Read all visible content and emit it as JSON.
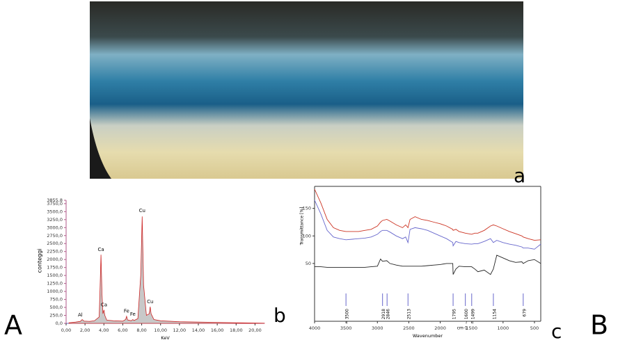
{
  "panel_labels": {
    "photo": "a",
    "spectrum": "b",
    "ftir": "c",
    "left": "A",
    "right": "B"
  },
  "chart_data": [
    {
      "type": "area",
      "x_label": "KeV",
      "y_label": "conteggi",
      "color": "#cc2222",
      "fill": "#c8c8c8",
      "x": [
        0.3,
        1.0,
        1.5,
        1.7,
        1.9,
        2.5,
        3.0,
        3.5,
        3.6,
        3.69,
        3.8,
        3.9,
        4.01,
        4.1,
        4.3,
        5.0,
        6.0,
        6.3,
        6.4,
        6.5,
        6.9,
        7.06,
        7.2,
        7.6,
        7.9,
        8.05,
        8.2,
        8.5,
        8.8,
        8.9,
        9.0,
        9.3,
        10,
        12,
        14,
        16,
        18,
        20,
        21
      ],
      "values": [
        20,
        40,
        60,
        120,
        70,
        60,
        80,
        200,
        1200,
        2150,
        900,
        300,
        420,
        250,
        100,
        80,
        70,
        120,
        220,
        110,
        80,
        120,
        90,
        150,
        1500,
        3350,
        1200,
        250,
        300,
        520,
        300,
        120,
        80,
        50,
        40,
        30,
        20,
        10,
        5
      ],
      "xlim": [
        0,
        21
      ],
      "ylim": [
        0,
        3855.8
      ],
      "xticks": [
        {
          "value": 0,
          "label": "0,00"
        },
        {
          "value": 2,
          "label": "2,00"
        },
        {
          "value": 4,
          "label": "4,00"
        },
        {
          "value": 6,
          "label": "6,00"
        },
        {
          "value": 8,
          "label": "8,00"
        },
        {
          "value": 10,
          "label": "10,00"
        },
        {
          "value": 12,
          "label": "12,00"
        },
        {
          "value": 14,
          "label": "14,00"
        },
        {
          "value": 16,
          "label": "16,00"
        },
        {
          "value": 18,
          "label": "18,00"
        },
        {
          "value": 20,
          "label": "20,00"
        }
      ],
      "yticks": [
        {
          "value": 0,
          "label": "0,0"
        },
        {
          "value": 250,
          "label": "250,0"
        },
        {
          "value": 500,
          "label": "500,0"
        },
        {
          "value": 750,
          "label": "750,0"
        },
        {
          "value": 1000,
          "label": "1000,0"
        },
        {
          "value": 1250,
          "label": "1250,0"
        },
        {
          "value": 1500,
          "label": "1500,0"
        },
        {
          "value": 1750,
          "label": "1750,0"
        },
        {
          "value": 2000,
          "label": "2000,0"
        },
        {
          "value": 2250,
          "label": "2250,0"
        },
        {
          "value": 2500,
          "label": "2500,0"
        },
        {
          "value": 2750,
          "label": "2750,0"
        },
        {
          "value": 3000,
          "label": "3000,0"
        },
        {
          "value": 3250,
          "label": "3250,0"
        },
        {
          "value": 3500,
          "label": "3500,0"
        },
        {
          "value": 3750,
          "label": "3750,0"
        },
        {
          "value": 3855.8,
          "label": "3855,8"
        }
      ],
      "annotations": [
        {
          "text": "Al",
          "x": 1.5,
          "y": 150
        },
        {
          "text": "Ca",
          "x": 3.69,
          "y": 2200
        },
        {
          "text": "Ca",
          "x": 4.01,
          "y": 470
        },
        {
          "text": "Fe",
          "x": 6.4,
          "y": 270
        },
        {
          "text": "Fe",
          "x": 7.06,
          "y": 170
        },
        {
          "text": "Cu",
          "x": 8.05,
          "y": 3420
        },
        {
          "text": "Cu",
          "x": 8.9,
          "y": 570
        }
      ]
    },
    {
      "type": "line",
      "x_label": "Wavenumber",
      "x_unit": "cm-1",
      "y_label": "Transmittance [%]",
      "x": [
        4000,
        3900,
        3800,
        3700,
        3600,
        3500,
        3400,
        3300,
        3200,
        3100,
        3000,
        2950,
        2920,
        2850,
        2800,
        2700,
        2600,
        2550,
        2513,
        2480,
        2400,
        2300,
        2200,
        2100,
        2000,
        1900,
        1800,
        1795,
        1750,
        1700,
        1600,
        1500,
        1450,
        1400,
        1300,
        1200,
        1154,
        1100,
        1000,
        900,
        800,
        700,
        679,
        600,
        500,
        400
      ],
      "series": [
        {
          "color": "#cc3322",
          "values": [
            185,
            160,
            130,
            115,
            110,
            108,
            108,
            108,
            110,
            112,
            118,
            125,
            128,
            130,
            127,
            120,
            115,
            120,
            115,
            130,
            135,
            130,
            128,
            125,
            122,
            118,
            112,
            110,
            112,
            108,
            105,
            103,
            105,
            105,
            110,
            118,
            120,
            118,
            113,
            108,
            104,
            100,
            98,
            95,
            92,
            93
          ]
        },
        {
          "color": "#6666cc",
          "values": [
            165,
            140,
            110,
            98,
            95,
            93,
            94,
            95,
            96,
            98,
            103,
            108,
            110,
            110,
            107,
            100,
            95,
            98,
            88,
            112,
            115,
            113,
            110,
            105,
            100,
            95,
            88,
            82,
            90,
            88,
            86,
            85,
            86,
            86,
            90,
            95,
            88,
            92,
            88,
            85,
            83,
            80,
            78,
            78,
            76,
            85
          ]
        },
        {
          "color": "#222222",
          "values": [
            44,
            44,
            43,
            43,
            43,
            43,
            43,
            43,
            43,
            44,
            45,
            58,
            54,
            55,
            50,
            47,
            45,
            45,
            45,
            45,
            45,
            45,
            46,
            47,
            48,
            50,
            50,
            30,
            40,
            45,
            44,
            44,
            40,
            35,
            38,
            30,
            40,
            65,
            60,
            55,
            52,
            53,
            50,
            55,
            57,
            50
          ]
        }
      ],
      "xlim": [
        4000,
        400
      ],
      "ylim": [
        -55,
        190
      ],
      "xticks": [
        4000,
        3500,
        3000,
        2500,
        2000,
        1500,
        1000,
        500
      ],
      "yticks": [
        50,
        100,
        150
      ],
      "peak_markers": [
        {
          "value": 3500,
          "label": "~ 3500"
        },
        {
          "value": 2918,
          "label": "2918"
        },
        {
          "value": 2846,
          "label": "2846"
        },
        {
          "value": 2513,
          "label": "2513"
        },
        {
          "value": 1795,
          "label": "1795"
        },
        {
          "value": 1600,
          "label": "~ 1600"
        },
        {
          "value": 1499,
          "label": "~ 1499"
        },
        {
          "value": 1154,
          "label": "1154"
        },
        {
          "value": 679,
          "label": "679"
        }
      ]
    }
  ]
}
